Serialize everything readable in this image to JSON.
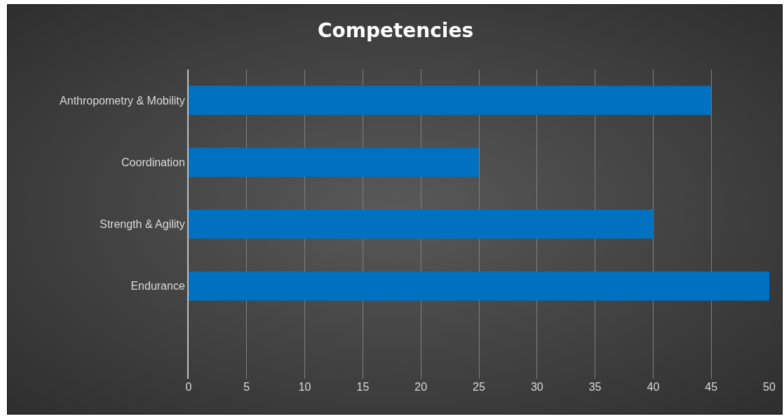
{
  "chart_data": {
    "type": "bar",
    "orientation": "horizontal",
    "title": "Competencies",
    "categories": [
      "Anthropometry & Mobility",
      "Coordination",
      "Strength & Agility",
      "Endurance",
      null
    ],
    "values": [
      45,
      25,
      40,
      50,
      null
    ],
    "color": "#0070c0",
    "xlim": [
      0,
      50
    ],
    "xticks": [
      0,
      5,
      10,
      15,
      20,
      25,
      30,
      35,
      40,
      45,
      50
    ],
    "grid": "x"
  }
}
